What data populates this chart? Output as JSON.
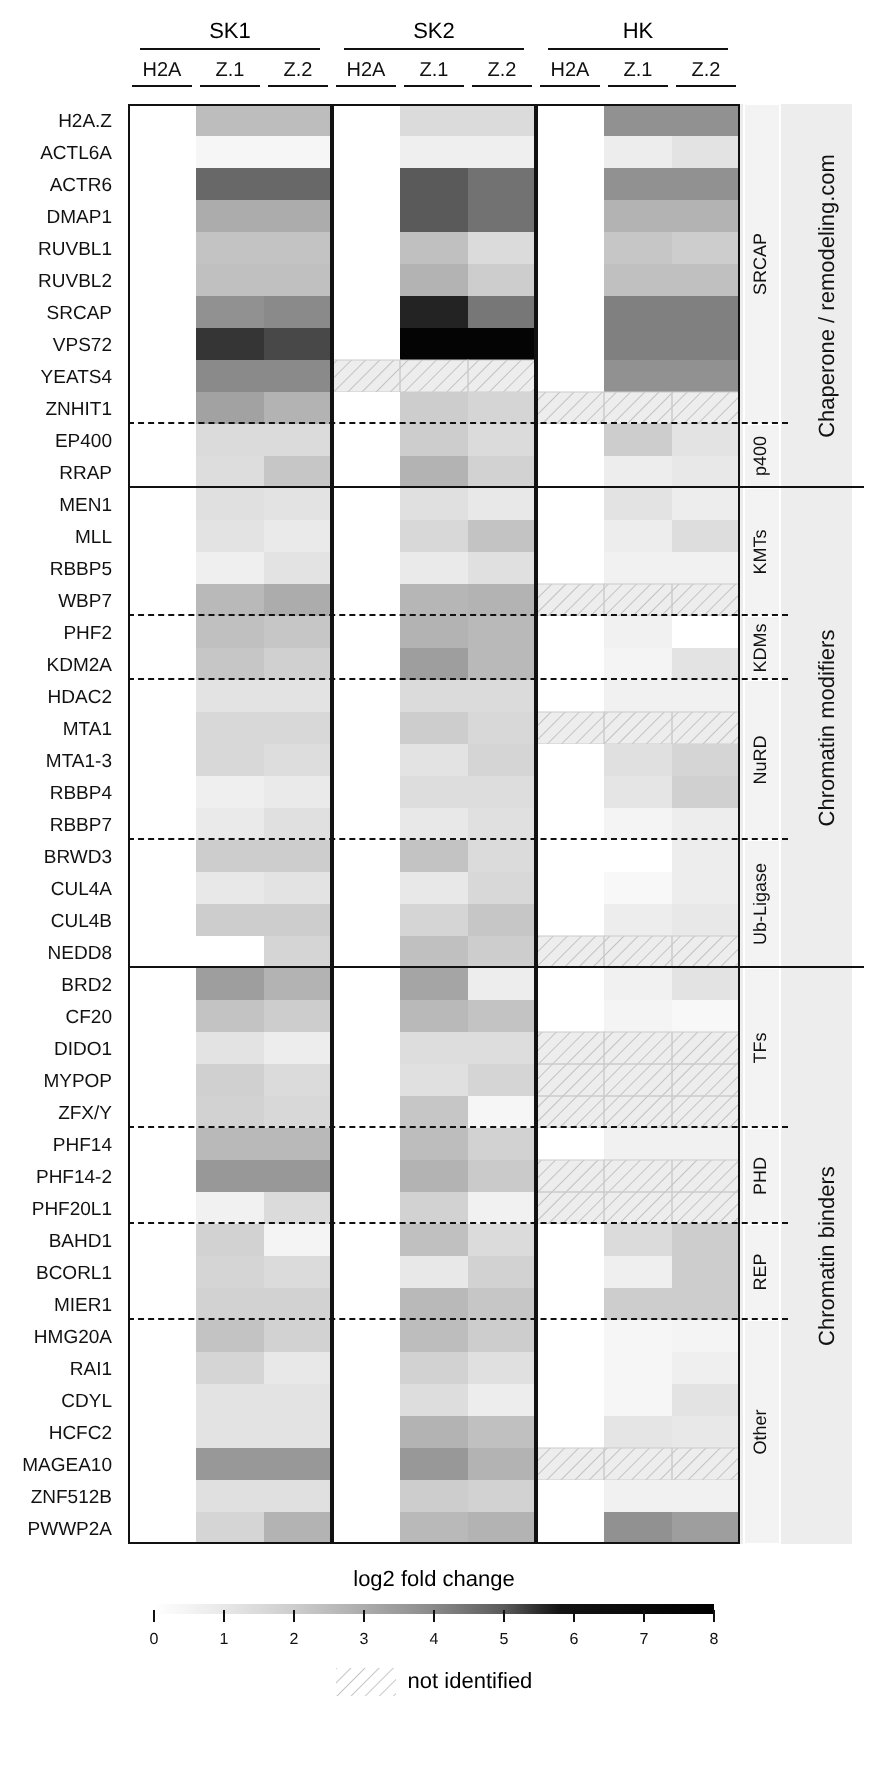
{
  "chart_data": {
    "type": "heatmap",
    "categories": [
      "H2A",
      "Z.1",
      "Z.2",
      "H2A",
      "Z.1",
      "Z.2",
      "H2A",
      "Z.1",
      "Z.2"
    ],
    "y_categories": [
      "H2A.Z",
      "ACTL6A",
      "ACTR6",
      "DMAP1",
      "RUVBL1",
      "RUVBL2",
      "SRCAP",
      "VPS72",
      "YEATS4",
      "ZNHIT1",
      "EP400",
      "RRAP",
      "MEN1",
      "MLL",
      "RBBP5",
      "WBP7",
      "PHF2",
      "KDM2A",
      "HDAC2",
      "MTA1",
      "MTA1-3",
      "RBBP4",
      "RBBP7",
      "BRWD3",
      "CUL4A",
      "CUL4B",
      "NEDD8",
      "BRD2",
      "CF20",
      "DIDO1",
      "MYPOP",
      "ZFX/Y",
      "PHF14",
      "PHF14-2",
      "PHF20L1",
      "BAHD1",
      "BCORL1",
      "MIER1",
      "HMG20A",
      "RAI1",
      "CDYL",
      "HCFC2",
      "MAGEA10",
      "ZNF512B",
      "PWWP2A"
    ],
    "cells": [
      [
        0,
        2.5,
        2.5,
        0,
        1.5,
        1.5,
        0,
        3.8,
        3.8
      ],
      [
        0,
        0.4,
        0.4,
        0,
        0.7,
        0.7,
        0,
        0.8,
        1.2
      ],
      [
        0,
        4.7,
        4.7,
        0,
        5,
        4.5,
        0,
        3.8,
        3.8
      ],
      [
        0,
        3,
        3,
        0,
        5,
        4.5,
        0,
        2.8,
        2.8
      ],
      [
        0,
        2.3,
        2.3,
        0,
        2.4,
        1.5,
        0,
        2.2,
        2
      ],
      [
        0,
        2.4,
        2.4,
        0,
        2.8,
        2,
        0,
        2.4,
        2.4
      ],
      [
        0,
        3.8,
        4,
        0,
        5.6,
        4.4,
        0,
        4.2,
        4.2
      ],
      [
        0,
        5.4,
        5.2,
        0,
        7.5,
        7.5,
        0,
        4.2,
        4.2
      ],
      [
        0,
        4,
        4,
        null,
        null,
        null,
        0,
        3.8,
        3.8
      ],
      [
        0,
        3.3,
        2.8,
        0,
        2,
        1.7,
        null,
        null,
        null
      ],
      [
        0,
        1.5,
        1.5,
        0,
        2,
        1.5,
        0,
        2,
        1.2
      ],
      [
        0,
        1.4,
        2.2,
        0,
        2.8,
        1.8,
        0,
        0.8,
        1
      ],
      [
        0,
        1.3,
        1.2,
        0,
        1.3,
        1,
        0,
        1.2,
        0.8
      ],
      [
        0,
        1.2,
        0.9,
        0,
        1.6,
        2.3,
        0,
        0.8,
        1.4
      ],
      [
        0,
        0.7,
        1.2,
        0,
        0.9,
        1.3,
        0,
        0.6,
        0.6
      ],
      [
        0,
        2.6,
        3,
        0,
        2.7,
        2.8,
        null,
        null,
        null
      ],
      [
        0,
        2.4,
        2.2,
        0,
        2.8,
        2.6,
        0,
        0.6,
        0
      ],
      [
        0,
        2.2,
        1.9,
        0,
        3.4,
        2.6,
        0,
        0.5,
        1.2
      ],
      [
        0,
        1.2,
        1.2,
        0,
        1.5,
        1.5,
        0,
        0.6,
        0.6
      ],
      [
        0,
        1.6,
        1.6,
        0,
        2,
        1.6,
        null,
        null,
        null
      ],
      [
        0,
        1.6,
        1.4,
        0,
        1.2,
        1.7,
        0,
        1.3,
        1.7
      ],
      [
        0,
        0.7,
        0.9,
        0,
        1.4,
        1.4,
        0,
        1.1,
        1.9
      ],
      [
        0,
        0.9,
        1.3,
        0,
        1,
        1.3,
        0,
        0.5,
        0.8
      ],
      [
        0,
        2,
        2,
        0,
        2.3,
        1.5,
        0,
        0,
        0.8
      ],
      [
        0,
        1,
        1.2,
        0,
        1,
        1.6,
        0,
        0.3,
        0.8
      ],
      [
        0,
        2,
        2,
        0,
        1.7,
        2.2,
        0,
        0.8,
        1
      ],
      [
        0,
        0,
        1.7,
        0,
        2.4,
        2,
        null,
        null,
        null
      ],
      [
        0,
        3.4,
        2.8,
        0,
        3.2,
        0.8,
        0,
        0.6,
        1.2
      ],
      [
        0,
        2.3,
        2,
        0,
        2.6,
        2.3,
        0,
        0.5,
        0.3
      ],
      [
        0,
        1.2,
        0.8,
        0,
        1.4,
        1.4,
        null,
        null,
        null
      ],
      [
        0,
        1.9,
        1.5,
        0,
        1.3,
        1.7,
        null,
        null,
        null
      ],
      [
        0,
        1.8,
        1.6,
        0,
        2.2,
        0.4,
        null,
        null,
        null
      ],
      [
        0,
        2.6,
        2.6,
        0,
        2.5,
        1.8,
        0,
        0.6,
        0.6
      ],
      [
        0,
        3.6,
        3.6,
        0,
        2.8,
        2.1,
        null,
        null,
        null
      ],
      [
        0,
        0.6,
        1.5,
        0,
        1.8,
        0.6,
        null,
        null,
        null
      ],
      [
        0,
        1.8,
        0.5,
        0,
        2.4,
        1.5,
        0,
        1.5,
        2
      ],
      [
        0,
        1.7,
        1.5,
        0,
        1,
        1.8,
        0,
        0.7,
        2
      ],
      [
        0,
        1.8,
        1.8,
        0,
        2.6,
        2.2,
        0,
        2,
        2
      ],
      [
        0,
        2.3,
        1.8,
        0,
        2.5,
        2,
        0,
        0.4,
        0.5
      ],
      [
        0,
        1.7,
        1,
        0,
        1.8,
        1.3,
        0,
        0.4,
        0.7
      ],
      [
        0,
        1.2,
        1.2,
        0,
        1.4,
        0.8,
        0,
        0.4,
        1.2
      ],
      [
        0,
        1.2,
        1.2,
        0,
        2.8,
        2.4,
        0,
        1.1,
        1
      ],
      [
        0,
        3.6,
        3.6,
        0,
        3.6,
        2.8,
        null,
        null,
        null
      ],
      [
        0,
        1.3,
        1.3,
        0,
        2,
        1.8,
        0,
        0.6,
        0.6
      ],
      [
        0,
        1.7,
        2.8,
        0,
        2.6,
        2.8,
        0,
        3.8,
        3.4
      ]
    ],
    "clim": [
      0,
      8
    ],
    "cticks": [
      0,
      1,
      2,
      3,
      4,
      5,
      6,
      7,
      8
    ],
    "clabel": "log2 fold change",
    "annotations": [
      "SK1",
      "SK2",
      "HK",
      "not identified"
    ],
    "bands": [
      {
        "axis": "y",
        "from": "H2A.Z",
        "to": "ZNHIT1",
        "label": "SRCAP"
      },
      {
        "axis": "y",
        "from": "EP400",
        "to": "RRAP",
        "label": "p400"
      },
      {
        "axis": "y",
        "from": "MEN1",
        "to": "WBP7",
        "label": "KMTs"
      },
      {
        "axis": "y",
        "from": "PHF2",
        "to": "KDM2A",
        "label": "KDMs"
      },
      {
        "axis": "y",
        "from": "HDAC2",
        "to": "RBBP7",
        "label": "NuRD"
      },
      {
        "axis": "y",
        "from": "BRWD3",
        "to": "NEDD8",
        "label": "Ub-Ligase"
      },
      {
        "axis": "y",
        "from": "BRD2",
        "to": "ZFX/Y",
        "label": "TFs"
      },
      {
        "axis": "y",
        "from": "PHF14",
        "to": "PHF20L1",
        "label": "PHD"
      },
      {
        "axis": "y",
        "from": "BAHD1",
        "to": "MIER1",
        "label": "REP"
      },
      {
        "axis": "y",
        "from": "HMG20A",
        "to": "PWWP2A",
        "label": "Other"
      },
      {
        "axis": "y",
        "from": "H2A.Z",
        "to": "RRAP",
        "label": "Chaperone / remodeling.com"
      },
      {
        "axis": "y",
        "from": "MEN1",
        "to": "NEDD8",
        "label": "Chromatin modifiers"
      },
      {
        "axis": "y",
        "from": "BRD2",
        "to": "PWWP2A",
        "label": "Chromatin binders"
      }
    ]
  }
}
